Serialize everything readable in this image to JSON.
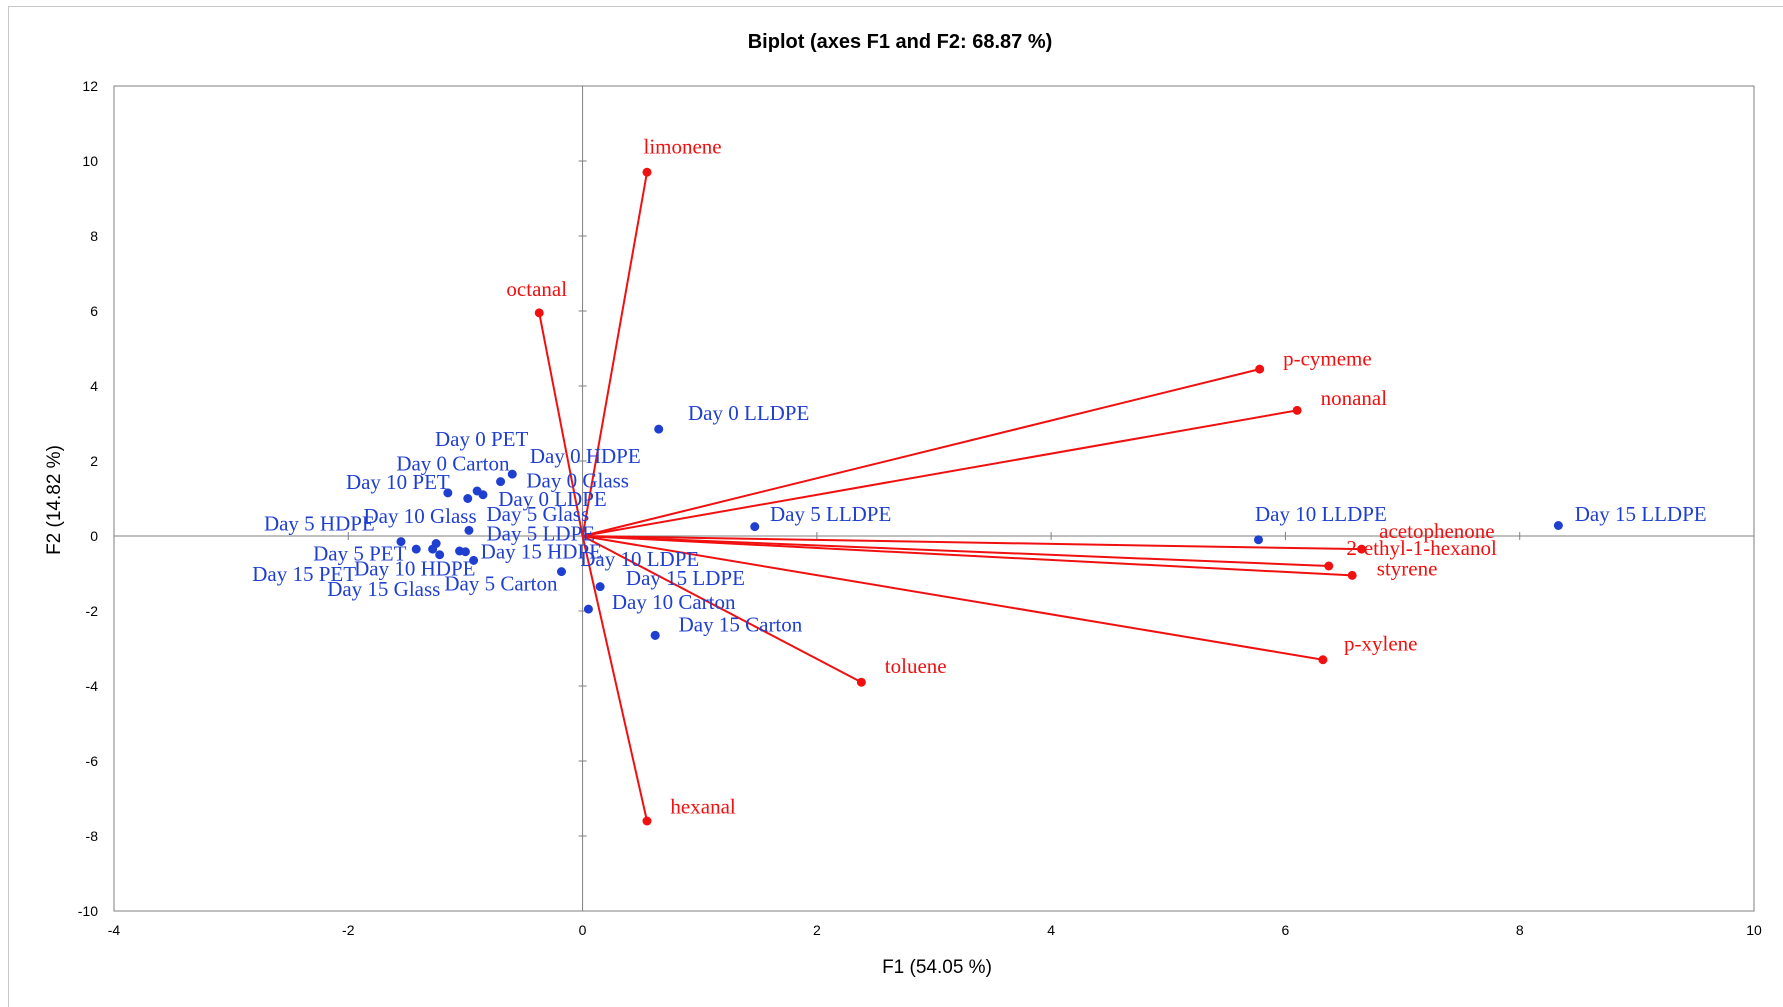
{
  "chart_data": {
    "type": "scatter",
    "title": "Biplot (axes F1 and F2: 68.87 %)",
    "xlabel": "F1 (54.05 %)",
    "ylabel": "F2 (14.82 %)",
    "xlim": [
      -4,
      10
    ],
    "ylim": [
      -10,
      12
    ],
    "xticks": [
      -4,
      -2,
      0,
      2,
      4,
      6,
      8,
      10
    ],
    "yticks": [
      -10,
      -8,
      -6,
      -4,
      -2,
      0,
      2,
      4,
      6,
      8,
      10,
      12
    ],
    "grid": false,
    "colors": {
      "observations": "#1f3fd0",
      "variables": "#f01010"
    },
    "observations": [
      {
        "label": "Day 0 LLDPE",
        "x": 0.65,
        "y": 2.85
      },
      {
        "label": "Day 0 PET",
        "x": -0.6,
        "y": 1.65
      },
      {
        "label": "Day 0 Carton",
        "x": -0.7,
        "y": 1.45
      },
      {
        "label": "Day 0 HDPE",
        "x": -0.9,
        "y": 1.2
      },
      {
        "label": "Day 10 PET",
        "x": -1.15,
        "y": 1.15
      },
      {
        "label": "Day 0 Glass",
        "x": -0.85,
        "y": 1.1
      },
      {
        "label": "Day 0 LDPE",
        "x": -0.98,
        "y": 1.0
      },
      {
        "label": "Day 5 LLDPE",
        "x": 1.47,
        "y": 0.25
      },
      {
        "label": "Day 10 LLDPE",
        "x": 5.77,
        "y": -0.1
      },
      {
        "label": "Day 15 LLDPE",
        "x": 8.33,
        "y": 0.28
      },
      {
        "label": "Day 5 Glass",
        "x": -0.97,
        "y": 0.15
      },
      {
        "label": "Day 5 HDPE",
        "x": -1.55,
        "y": -0.15
      },
      {
        "label": "Day 10 Glass",
        "x": -1.25,
        "y": -0.2
      },
      {
        "label": "Day 5 LDPE",
        "x": -1.42,
        "y": -0.35
      },
      {
        "label": "Day 5 PET",
        "x": -1.28,
        "y": -0.35
      },
      {
        "label": "Day 15 HDPE",
        "x": -1.05,
        "y": -0.4
      },
      {
        "label": "Day 10 HDPE",
        "x": -1.0,
        "y": -0.42
      },
      {
        "label": "Day 15 PET",
        "x": -1.22,
        "y": -0.5
      },
      {
        "label": "Day 15 Glass",
        "x": -0.93,
        "y": -0.65
      },
      {
        "label": "Day 5 Carton",
        "x": -0.18,
        "y": -0.95
      },
      {
        "label": "Day 10 LDPE",
        "x": 0.15,
        "y": -1.35
      },
      {
        "label": "Day 15 LDPE",
        "x": 0.05,
        "y": -1.95
      },
      {
        "label": "Day 10 Carton",
        "x": 0.62,
        "y": -2.65
      },
      {
        "label": "Day 15 Carton",
        "x": 0.62,
        "y": -2.65
      }
    ],
    "observation_labels": [
      {
        "label": "Day 0 LLDPE",
        "x": 0.9,
        "y": 3.1
      },
      {
        "label": "Day 0 PET",
        "x": -1.26,
        "y": 2.4
      },
      {
        "label": "Day 0 Carton",
        "x": -1.59,
        "y": 1.75
      },
      {
        "label": "Day 0 HDPE",
        "x": -0.45,
        "y": 1.95
      },
      {
        "label": "Day 10 PET",
        "x": -2.02,
        "y": 1.25
      },
      {
        "label": "Day 0 Glass",
        "x": -0.48,
        "y": 1.3
      },
      {
        "label": "Day 0 LDPE",
        "x": -0.72,
        "y": 0.8
      },
      {
        "label": "Day 5 LLDPE",
        "x": 1.6,
        "y": 0.4
      },
      {
        "label": "Day 10 LLDPE",
        "x": 5.74,
        "y": 0.4
      },
      {
        "label": "Day 15 LLDPE",
        "x": 8.47,
        "y": 0.4
      },
      {
        "label": "Day 5 Glass",
        "x": -0.82,
        "y": 0.4
      },
      {
        "label": "Day 5 HDPE",
        "x": -2.72,
        "y": 0.15
      },
      {
        "label": "Day 10 Glass",
        "x": -1.87,
        "y": 0.35
      },
      {
        "label": "Day 5 LDPE",
        "x": -0.82,
        "y": -0.12
      },
      {
        "label": "Day 5 PET",
        "x": -2.3,
        "y": -0.65
      },
      {
        "label": "Day 15 HDPE",
        "x": -0.87,
        "y": -0.6
      },
      {
        "label": "Day 10 HDPE",
        "x": -1.95,
        "y": -1.05
      },
      {
        "label": "Day 15 PET",
        "x": -2.82,
        "y": -1.2
      },
      {
        "label": "Day 15 Glass",
        "x": -2.18,
        "y": -1.6
      },
      {
        "label": "Day 5 Carton",
        "x": -1.18,
        "y": -1.45
      },
      {
        "label": "Day 10 LDPE",
        "x": -0.02,
        "y": -0.8
      },
      {
        "label": "Day 15 LDPE",
        "x": 0.37,
        "y": -1.3
      },
      {
        "label": "Day 10 Carton",
        "x": 0.25,
        "y": -1.95
      },
      {
        "label": "Day 15 Carton",
        "x": 0.82,
        "y": -2.55
      }
    ],
    "variables": [
      {
        "label": "limonene",
        "x": 0.55,
        "y": 9.7
      },
      {
        "label": "octanal",
        "x": -0.37,
        "y": 5.95
      },
      {
        "label": "p-cymeme",
        "x": 5.78,
        "y": 4.45
      },
      {
        "label": "nonanal",
        "x": 6.1,
        "y": 3.35
      },
      {
        "label": "acetophenone",
        "x": 6.65,
        "y": -0.35
      },
      {
        "label": "2-ethyl-1-hexanol",
        "x": 6.37,
        "y": -0.8
      },
      {
        "label": "styrene",
        "x": 6.57,
        "y": -1.05
      },
      {
        "label": "p-xylene",
        "x": 6.32,
        "y": -3.3
      },
      {
        "label": "toluene",
        "x": 2.38,
        "y": -3.9
      },
      {
        "label": "hexanal",
        "x": 0.55,
        "y": -7.6
      }
    ],
    "variable_labels": [
      {
        "label": "limonene",
        "x": 0.52,
        "y": 10.2
      },
      {
        "label": "octanal",
        "x": -0.65,
        "y": 6.4
      },
      {
        "label": "p-cymeme",
        "x": 5.98,
        "y": 4.55
      },
      {
        "label": "nonanal",
        "x": 6.3,
        "y": 3.5
      },
      {
        "label": "acetophenone",
        "x": 6.8,
        "y": -0.05
      },
      {
        "label": "2-ethyl-1-hexanol",
        "x": 6.52,
        "y": -0.5
      },
      {
        "label": "styrene",
        "x": 6.78,
        "y": -1.05
      },
      {
        "label": "p-xylene",
        "x": 6.5,
        "y": -3.05
      },
      {
        "label": "toluene",
        "x": 2.58,
        "y": -3.65
      },
      {
        "label": "hexanal",
        "x": 0.75,
        "y": -7.4
      }
    ]
  }
}
